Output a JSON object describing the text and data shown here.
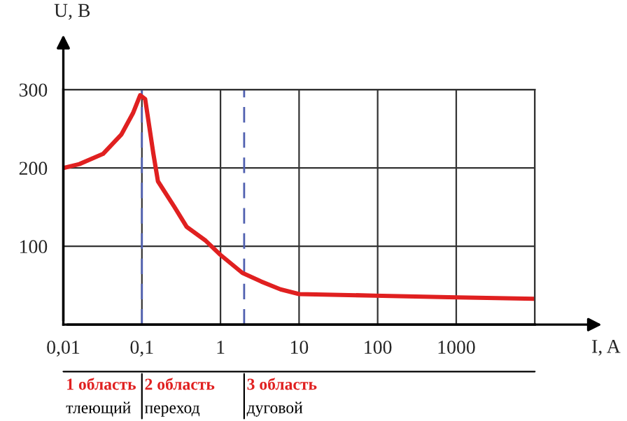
{
  "chart_data": {
    "type": "line",
    "xlabel": "I, A",
    "ylabel": "U, B",
    "log": "x",
    "x": [
      0.01,
      0.016,
      0.032,
      0.055,
      0.077,
      0.095,
      0.11,
      0.14,
      0.16,
      0.26,
      0.37,
      0.65,
      1,
      1.9,
      3.3,
      5.8,
      10,
      90,
      800,
      10000
    ],
    "series": [
      {
        "color": "#e02020",
        "values": [
          200,
          205,
          218,
          243,
          270,
          293,
          288,
          218,
          183,
          150,
          125,
          107,
          89,
          66,
          55,
          45,
          39,
          37,
          35,
          33
        ]
      }
    ],
    "xlim": [
      0.01,
      10000
    ],
    "ylim": [
      0,
      300
    ],
    "xticks": [
      {
        "value": 0.01,
        "label": "0,01"
      },
      {
        "value": 0.1,
        "label": "0,1"
      },
      1,
      10,
      100,
      1000,
      {
        "value": 10000,
        "label": null
      }
    ],
    "yticks": [
      {
        "value": 0,
        "label": null
      },
      100,
      200,
      300
    ],
    "grid": true,
    "marker": "none",
    "line_style": "solid",
    "ref_lines": [
      {
        "axis": "x",
        "value": 0.1,
        "color": "#5060b0",
        "line_style": "dashed"
      },
      {
        "axis": "x",
        "value": 2,
        "color": "#5060b0",
        "line_style": "dashed"
      }
    ],
    "annotations": [
      "1 область",
      "тлеющий",
      "2 область",
      "переход",
      "3 область",
      "дуговой"
    ]
  }
}
